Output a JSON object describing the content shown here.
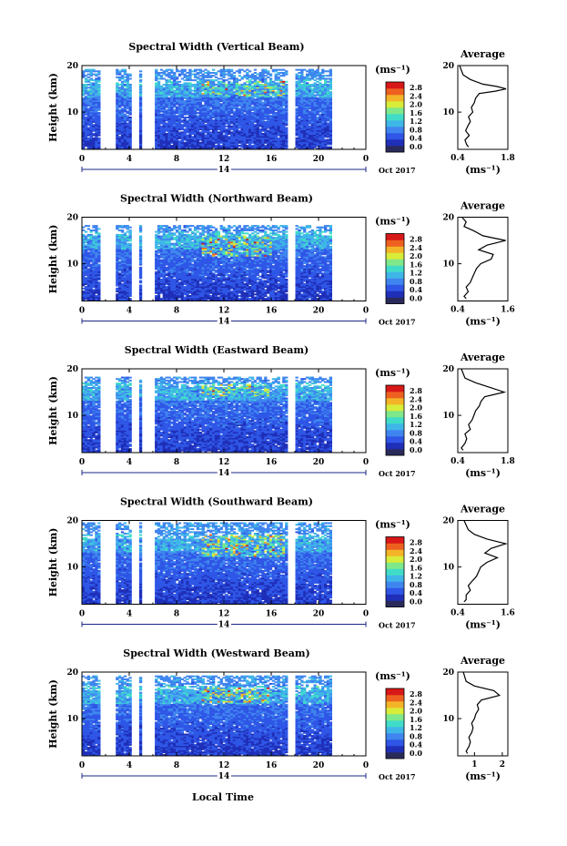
{
  "figure": {
    "xlabel": "Local Time",
    "day_label": "14",
    "date_label": "Oct 2017",
    "ylabel": "Height (km)",
    "colorbar_unit": "(ms⁻¹)",
    "colorbar_ticks": [
      "0.0",
      "0.4",
      "0.8",
      "1.2",
      "1.6",
      "2.0",
      "2.4",
      "2.8"
    ],
    "x_ticks": [
      "0",
      "4",
      "8",
      "12",
      "16",
      "20",
      "0"
    ],
    "y_ticks": [
      "10",
      "20"
    ],
    "profile_title": "Average",
    "profile_xlabel": "(ms⁻¹)",
    "colors": {
      "scale": [
        "#2a2a5a",
        "#1f2fb8",
        "#2f56e6",
        "#3f85ef",
        "#3fb6e8",
        "#40dcc8",
        "#7ee88a",
        "#d8ec3a",
        "#f4b428",
        "#ee6020",
        "#d81818"
      ]
    }
  },
  "chart_data": [
    {
      "type": "heatmap",
      "title": "Spectral Width (Vertical Beam)",
      "xlabel": "Local Time",
      "ylabel": "Height (km)",
      "xlim": [
        0,
        24
      ],
      "ylim": [
        2,
        20
      ],
      "clim": [
        0.0,
        2.8
      ],
      "data_gaps_hours": [
        [
          1.7,
          2.0
        ],
        [
          2.3,
          2.7
        ],
        [
          4.3,
          4.7
        ],
        [
          5.1,
          6.0
        ],
        [
          17.6,
          18.0
        ]
      ],
      "data_end_hour": 21.0,
      "max_height_km": 19.2,
      "enhanced_width_layer": {
        "height_km": [
          13.5,
          16.5
        ],
        "time_hours": [
          10,
          17
        ],
        "peak_value": 2.6
      },
      "profile": {
        "title": "Average",
        "xticks": [
          "0.4",
          "1.8"
        ],
        "xlim": [
          0.4,
          1.8
        ],
        "heights": [
          2.5,
          3,
          4,
          5,
          6,
          7,
          8,
          9,
          10,
          11,
          12,
          13,
          14,
          14.5,
          15,
          15.5,
          16,
          17,
          18,
          19,
          20
        ],
        "values": [
          0.7,
          0.65,
          0.6,
          0.72,
          0.62,
          0.68,
          0.75,
          0.7,
          0.82,
          0.78,
          0.86,
          0.9,
          1.0,
          1.45,
          1.75,
          1.5,
          1.1,
          0.75,
          0.55,
          0.5,
          0.45
        ]
      }
    },
    {
      "type": "heatmap",
      "title": "Spectral Width (Northward Beam)",
      "xlabel": "Local Time",
      "ylabel": "Height (km)",
      "xlim": [
        0,
        24
      ],
      "ylim": [
        2,
        20
      ],
      "clim": [
        0.0,
        2.8
      ],
      "data_gaps_hours": [
        [
          1.7,
          2.0
        ],
        [
          2.3,
          2.7
        ],
        [
          4.3,
          4.7
        ],
        [
          5.1,
          6.0
        ],
        [
          17.6,
          18.0
        ]
      ],
      "data_end_hour": 21.0,
      "max_height_km": 18.2,
      "enhanced_width_layer": {
        "height_km": [
          11.5,
          16.0
        ],
        "time_hours": [
          10,
          16
        ],
        "peak_value": 2.8
      },
      "profile": {
        "title": "Average",
        "xticks": [
          "0.4",
          "1.6"
        ],
        "xlim": [
          0.4,
          1.6
        ],
        "heights": [
          2.5,
          3,
          4,
          5,
          6,
          7,
          8,
          9,
          10,
          11,
          12,
          13,
          14,
          15,
          16,
          17,
          18,
          19,
          20
        ],
        "values": [
          0.6,
          0.55,
          0.65,
          0.6,
          0.7,
          0.75,
          0.8,
          0.85,
          0.95,
          1.2,
          1.25,
          0.9,
          1.1,
          1.55,
          1.0,
          0.8,
          0.55,
          0.6,
          0.5
        ]
      }
    },
    {
      "type": "heatmap",
      "title": "Spectral Width (Eastward Beam)",
      "xlabel": "Local Time",
      "ylabel": "Height (km)",
      "xlim": [
        0,
        24
      ],
      "ylim": [
        2,
        20
      ],
      "clim": [
        0.0,
        2.8
      ],
      "data_gaps_hours": [
        [
          1.7,
          2.0
        ],
        [
          2.3,
          2.7
        ],
        [
          4.3,
          4.7
        ],
        [
          5.1,
          6.0
        ],
        [
          17.6,
          18.0
        ]
      ],
      "data_end_hour": 21.0,
      "max_height_km": 18.2,
      "enhanced_width_layer": {
        "height_km": [
          14.0,
          16.5
        ],
        "time_hours": [
          10,
          16
        ],
        "peak_value": 2.6
      },
      "profile": {
        "title": "Average",
        "xticks": [
          "0.4",
          "1.8"
        ],
        "xlim": [
          0.4,
          1.8
        ],
        "heights": [
          2.5,
          3,
          4,
          5,
          6,
          7,
          8,
          9,
          10,
          11,
          12,
          13,
          14,
          15,
          16,
          17,
          18,
          19,
          20
        ],
        "values": [
          0.55,
          0.5,
          0.6,
          0.65,
          0.6,
          0.75,
          0.7,
          0.8,
          0.85,
          0.9,
          1.0,
          1.05,
          1.15,
          1.7,
          1.3,
          0.9,
          0.6,
          0.55,
          0.5
        ]
      }
    },
    {
      "type": "heatmap",
      "title": "Spectral Width (Southward Beam)",
      "xlabel": "Local Time",
      "ylabel": "Height (km)",
      "xlim": [
        0,
        24
      ],
      "ylim": [
        2,
        20
      ],
      "clim": [
        0.0,
        2.8
      ],
      "data_gaps_hours": [
        [
          1.7,
          2.0
        ],
        [
          2.3,
          2.7
        ],
        [
          4.3,
          4.7
        ],
        [
          5.1,
          6.0
        ],
        [
          17.6,
          18.0
        ]
      ],
      "data_end_hour": 21.0,
      "max_height_km": 19.5,
      "enhanced_width_layer": {
        "height_km": [
          12.0,
          17.0
        ],
        "time_hours": [
          10,
          17
        ],
        "peak_value": 2.8
      },
      "profile": {
        "title": "Average",
        "xticks": [
          "0.4",
          "1.6"
        ],
        "xlim": [
          0.4,
          1.6
        ],
        "heights": [
          2.5,
          3,
          4,
          5,
          6,
          7,
          8,
          9,
          10,
          11,
          12,
          13,
          14,
          15,
          16,
          17,
          18,
          19,
          20
        ],
        "values": [
          0.55,
          0.6,
          0.6,
          0.7,
          0.65,
          0.75,
          0.85,
          0.9,
          0.95,
          1.1,
          1.35,
          1.05,
          1.2,
          1.55,
          1.1,
          0.8,
          0.65,
          0.6,
          0.55
        ]
      }
    },
    {
      "type": "heatmap",
      "title": "Spectral Width (Westward Beam)",
      "xlabel": "Local Time",
      "ylabel": "Height (km)",
      "xlim": [
        0,
        24
      ],
      "ylim": [
        2,
        20
      ],
      "clim": [
        0.0,
        2.8
      ],
      "data_gaps_hours": [
        [
          1.7,
          2.0
        ],
        [
          2.3,
          2.7
        ],
        [
          4.3,
          4.7
        ],
        [
          5.1,
          6.0
        ],
        [
          17.6,
          18.0
        ]
      ],
      "data_end_hour": 21.0,
      "max_height_km": 19.0,
      "enhanced_width_layer": {
        "height_km": [
          13.5,
          16.5
        ],
        "time_hours": [
          10,
          16
        ],
        "peak_value": 2.8
      },
      "profile": {
        "title": "Average",
        "xticks": [
          "1",
          "2"
        ],
        "xlim": [
          0.4,
          2.2
        ],
        "heights": [
          2.5,
          3,
          4,
          5,
          6,
          7,
          8,
          9,
          10,
          11,
          12,
          13,
          14,
          15,
          16,
          17,
          18,
          19,
          20
        ],
        "values": [
          0.75,
          0.7,
          0.8,
          0.85,
          0.8,
          0.9,
          0.95,
          0.9,
          1.0,
          1.05,
          1.15,
          1.1,
          1.25,
          1.9,
          1.7,
          1.0,
          0.7,
          0.65,
          0.6
        ]
      }
    }
  ]
}
